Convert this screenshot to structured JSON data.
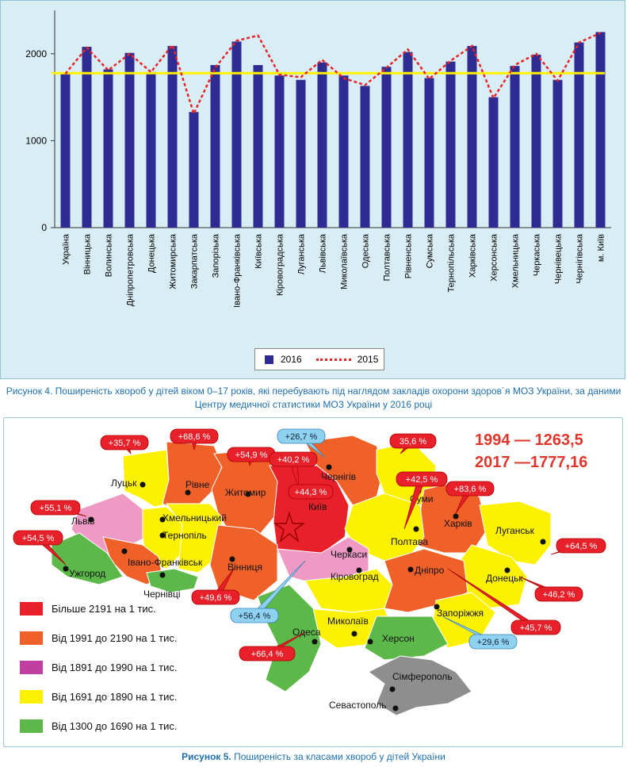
{
  "chart_data": {
    "type": "bar",
    "title": "",
    "xlabel": "",
    "ylabel": "",
    "ylim": [
      0,
      2500
    ],
    "yticks": [
      "0",
      "1000",
      "2000"
    ],
    "grid": false,
    "legend_position": "bottom",
    "categories": [
      "Україна",
      "Вінницька",
      "Волинська",
      "Дніпропетровська",
      "Донецька",
      "Житомирська",
      "Закарпатська",
      "Запорізька",
      "Івано-Франківська",
      "Київська",
      "Кіровоградська",
      "Луганська",
      "Львівська",
      "Миколаївська",
      "Одеська",
      "Полтавська",
      "Рівненська",
      "Сумська",
      "Тернопільська",
      "Харківська",
      "Херсонська",
      "Хмельницька",
      "Черкаська",
      "Чернівецька",
      "Чернігівська",
      "м. Київ"
    ],
    "series": [
      {
        "name": "2016",
        "type": "bar",
        "color": "#2e2b93",
        "values": [
          1777,
          2080,
          1820,
          2010,
          1790,
          2090,
          1330,
          1870,
          2140,
          1870,
          1750,
          1700,
          1900,
          1750,
          1630,
          1850,
          2020,
          1720,
          1910,
          2090,
          1500,
          1860,
          1990,
          1700,
          2130,
          2250
        ]
      },
      {
        "name": "2015",
        "type": "line",
        "color": "#e8242a",
        "values": [
          1770,
          2070,
          1810,
          2000,
          1790,
          2100,
          1310,
          1840,
          2150,
          2210,
          1760,
          1730,
          1930,
          1720,
          1640,
          1840,
          2050,
          1710,
          1920,
          2090,
          1490,
          1870,
          2000,
          1690,
          2130,
          2240
        ]
      }
    ],
    "reference_line": {
      "value": 1777,
      "color": "#fff200"
    }
  },
  "figure4_caption": "Рисунок 4.  Поширеність хвороб у дітей віком 0–17 років, які перебувають під наглядом закладів охорони здоров´я МОЗ України, за даними Центру медичної статистики МОЗ України у 2016 році",
  "figure5": {
    "caption_label": "Рисунок 5.",
    "caption_text": " Поширеність за класами хвороб у дітей України",
    "period_1994": "1994 — 1263,5",
    "period_2017": "2017 —1777,16",
    "legend": [
      {
        "label": "Більше 2191 на 1 тис.",
        "color": "#e8202a"
      },
      {
        "label": "Від 1991 до 2190 на 1 тис.",
        "color": "#ef6128"
      },
      {
        "label": "Від 1891 до 1990 на 1 тис.",
        "color": "#c13fa0"
      },
      {
        "label": "Від 1691 до 1890 на 1 тис.",
        "color": "#fbf100"
      },
      {
        "label": "Від 1300 до 1690 на 1 тис.",
        "color": "#5db84a"
      }
    ],
    "cities": [
      "Луцьк",
      "Рівне",
      "Житомир",
      "Чернігів",
      "Київ",
      "Суми",
      "Харків",
      "Луганськ",
      "Львів",
      "Хмельницький",
      "Тернопіль",
      "Полтава",
      "Черкаси",
      "Івано-Франківськ",
      "Ужгород",
      "Вінниця",
      "Чернівці",
      "Кіровоград",
      "Дніпро",
      "Донецьк",
      "Запоріжжя",
      "Миколаїв",
      "Одеса",
      "Херсон",
      "Сімферополь",
      "Севастополь"
    ],
    "tags": [
      "+35,7 %",
      "+68,6 %",
      "+26,7 %",
      "35,6 %",
      "+54,9 %",
      "+40,2 %",
      "+44,3 %",
      "+42,5 %",
      "+83,6 %",
      "+55,1 %",
      "+54,5 %",
      "+64,5 %",
      "+49,6 %",
      "+46,2 %",
      "+56,4 %",
      "+45,7 %",
      "+29,6 %",
      "+66,4 %"
    ]
  }
}
